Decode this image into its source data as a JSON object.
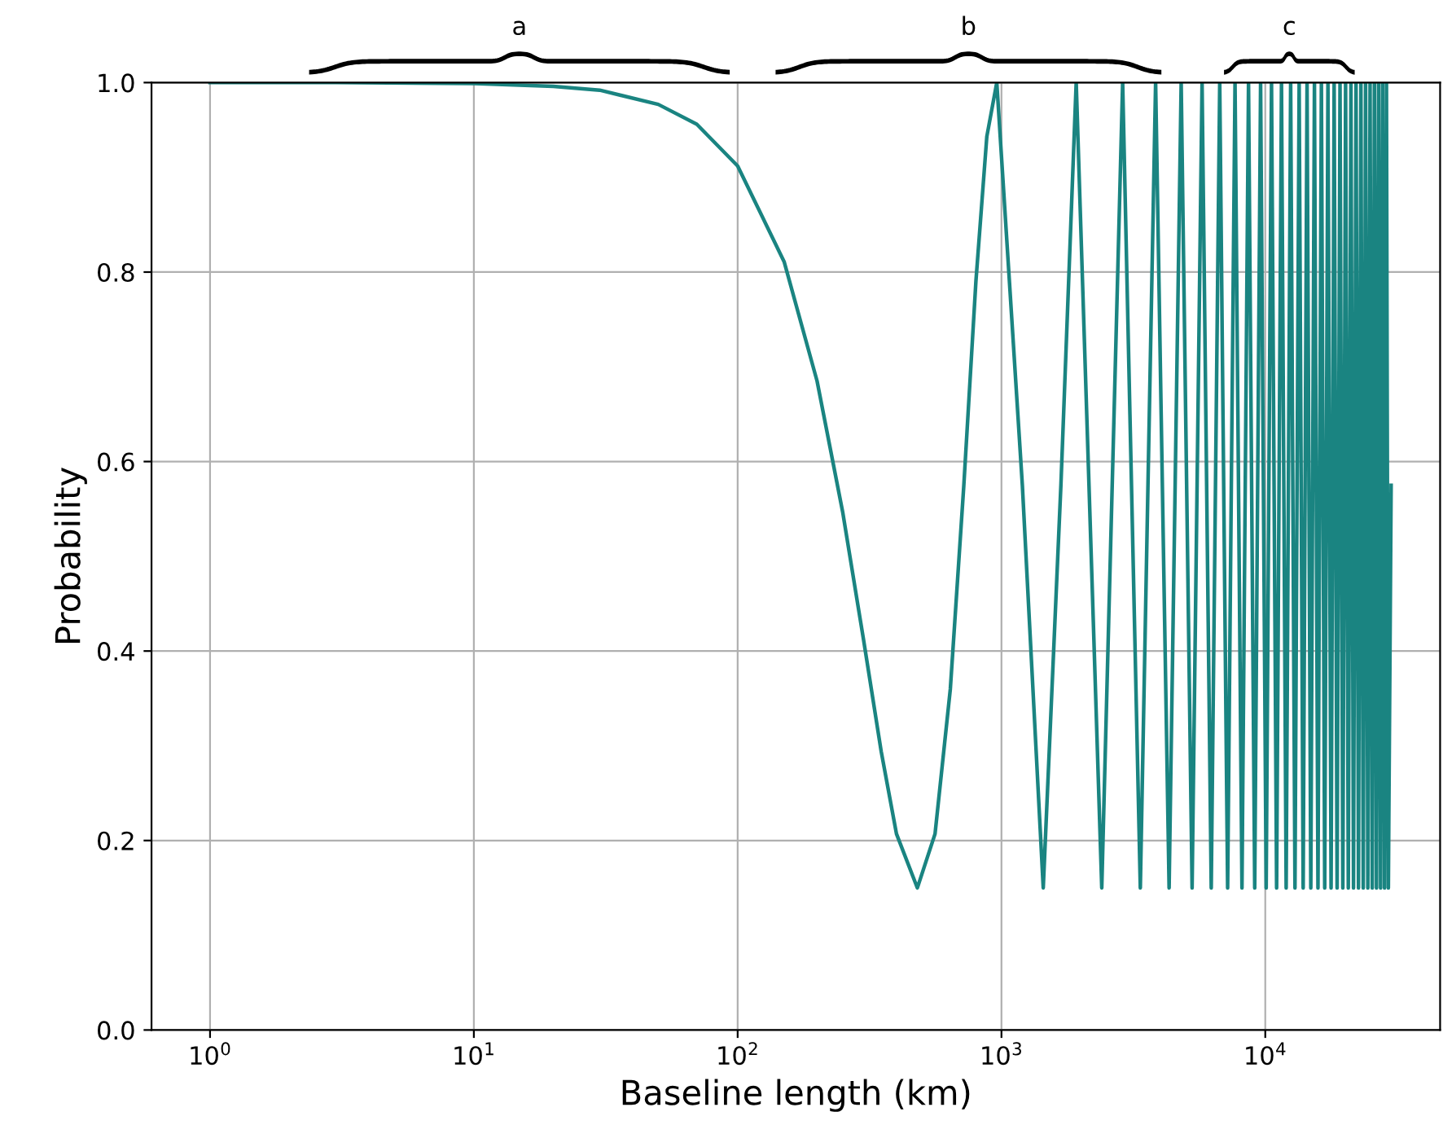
{
  "chart_data": {
    "type": "line",
    "xlabel": "Baseline length (km)",
    "ylabel": "Probability",
    "annotations": [
      "a",
      "b",
      "c"
    ],
    "x": [
      1,
      3,
      10,
      20,
      30,
      50,
      70,
      100,
      150,
      200,
      250,
      300,
      350,
      400,
      480,
      560,
      640,
      720,
      800,
      880,
      960,
      1200,
      1440,
      1680,
      1920,
      2400,
      2880,
      3360,
      3840,
      4320,
      4800,
      5280,
      5760,
      6240,
      6720,
      7200,
      7680,
      8160,
      8640,
      9120,
      9600,
      10080,
      10560,
      11040,
      11520,
      12000,
      12480,
      12960,
      13440,
      13920,
      14400,
      14880,
      15360,
      15840,
      16320,
      16800,
      17280,
      17760,
      18240,
      18720,
      19200,
      19680,
      20160,
      20640,
      21120,
      21600,
      22080,
      22560,
      23040,
      23520,
      24000,
      24480,
      24960,
      25440,
      25920,
      26400,
      26880,
      27360,
      27840,
      28320,
      28800,
      29280,
      30000
    ],
    "series": [
      {
        "color": "#1a8481",
        "values": [
          1.0,
          1.0,
          0.999,
          0.996,
          0.992,
          0.977,
          0.956,
          0.912,
          0.811,
          0.685,
          0.547,
          0.412,
          0.294,
          0.207,
          0.15,
          0.207,
          0.36,
          0.575,
          0.79,
          0.943,
          1.0,
          0.575,
          0.15,
          0.575,
          1.0,
          0.15,
          1,
          0.15,
          1,
          0.15,
          1,
          0.15,
          1,
          0.15,
          1,
          0.15,
          1,
          0.15,
          1,
          0.15,
          1,
          0.15,
          1,
          0.15,
          1,
          0.15,
          1,
          0.15,
          1,
          0.15,
          1,
          0.15,
          1,
          0.15,
          1,
          0.15,
          1,
          0.15,
          1,
          0.15,
          1,
          0.15,
          1,
          0.15,
          1,
          0.15,
          1,
          0.15,
          1,
          0.15,
          1,
          0.15,
          1,
          0.15,
          1,
          0.15,
          1,
          0.15,
          1,
          0.15,
          1,
          0.15,
          0.575
        ]
      }
    ],
    "log": "x",
    "xlim": [
      0.6,
      46000
    ],
    "ylim": [
      0,
      1
    ],
    "xticks": [
      {
        "value": 1,
        "label": "10$^{0}$"
      },
      {
        "value": 10,
        "label": "10$^{1}$"
      },
      {
        "value": 100,
        "label": "10$^{2}$"
      },
      {
        "value": 1000,
        "label": "10$^{3}$"
      },
      {
        "value": 10000,
        "label": "10$^{4}$"
      }
    ],
    "yticks": [
      {
        "value": 0,
        "label": "0.0"
      },
      {
        "value": 0.2,
        "label": "0.2"
      },
      {
        "value": 0.4,
        "label": "0.4"
      },
      {
        "value": 0.6,
        "label": "0.6"
      },
      {
        "value": 0.8,
        "label": "0.8"
      },
      {
        "value": 1,
        "label": "1.0"
      }
    ],
    "grid": true,
    "marker": "none",
    "line_style": "solid"
  }
}
